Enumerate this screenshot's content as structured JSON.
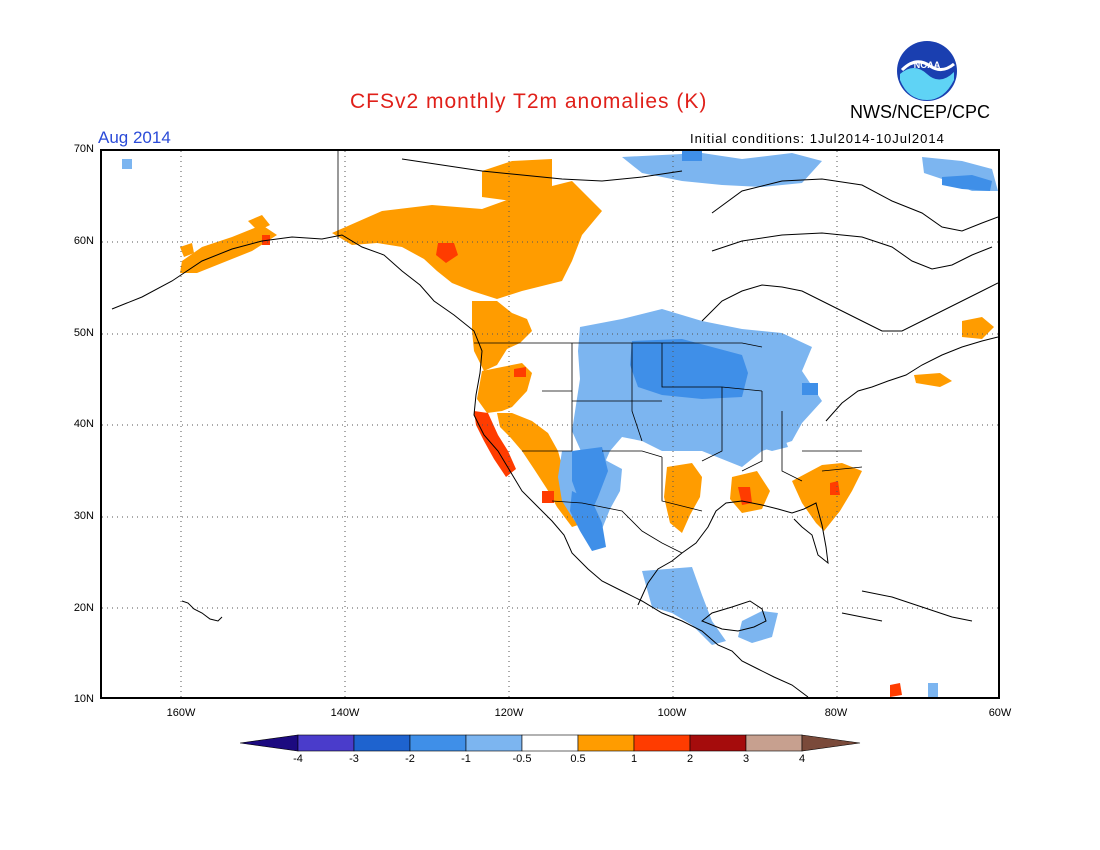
{
  "header": {
    "title": "CFSv2 monthly T2m anomalies (K)",
    "org": "NWS/NCEP/CPC",
    "logo_text": "NOAA",
    "target_month": "Aug 2014",
    "initial_conditions": "Initial conditions: 1Jul2014-10Jul2014"
  },
  "map": {
    "projection": "lat-lon",
    "lat_range": [
      10,
      70
    ],
    "lon_range": [
      -170,
      -60
    ],
    "grid": "dotted",
    "lat_labels": [
      "70N",
      "60N",
      "50N",
      "40N",
      "30N",
      "20N",
      "10N"
    ],
    "lon_labels": [
      "160W",
      "140W",
      "120W",
      "100W",
      "80W",
      "60W"
    ],
    "anomaly_regions": [
      {
        "region": "Alaska south coast",
        "class": "0.5 to 1"
      },
      {
        "region": "Yukon / northern British Columbia",
        "class": "0.5 to 1"
      },
      {
        "region": "Northern BC hot spot",
        "class": "1 to 2"
      },
      {
        "region": "Pacific Northwest coast",
        "class": "0.5 to 1"
      },
      {
        "region": "California coast",
        "class": "1 to 2"
      },
      {
        "region": "Southern California / Baja",
        "class": "0.5 to 1"
      },
      {
        "region": "Texas",
        "class": "0.5 to 1"
      },
      {
        "region": "Louisiana",
        "class": "1 to 2"
      },
      {
        "region": "Georgia / Carolinas",
        "class": "0.5 to 1"
      },
      {
        "region": "Northern Great Plains",
        "class": "-1 to -0.5"
      },
      {
        "region": "Dakotas / Minnesota",
        "class": "-2 to -1"
      },
      {
        "region": "Great Lakes",
        "class": "-1 to -0.5"
      },
      {
        "region": "Southwest US / NW Mexico",
        "class": "-1 to -0.5"
      },
      {
        "region": "Central Mexico",
        "class": "-1 to -0.5"
      },
      {
        "region": "Arctic Canada",
        "class": "-1 to -0.5"
      },
      {
        "region": "Maritimes",
        "class": "0.5 to 1"
      }
    ]
  },
  "colorbar": {
    "labels": [
      "-4",
      "-3",
      "-2",
      "-1",
      "-0.5",
      "0.5",
      "1",
      "2",
      "3",
      "4"
    ],
    "colors": [
      "#1c0a80",
      "#4a3ccb",
      "#1e63cf",
      "#3f8fe8",
      "#7cb5f0",
      "#ffffff",
      "#ff9c00",
      "#ff3c00",
      "#a50c0c",
      "#c7a08f",
      "#7a4a3a"
    ]
  }
}
